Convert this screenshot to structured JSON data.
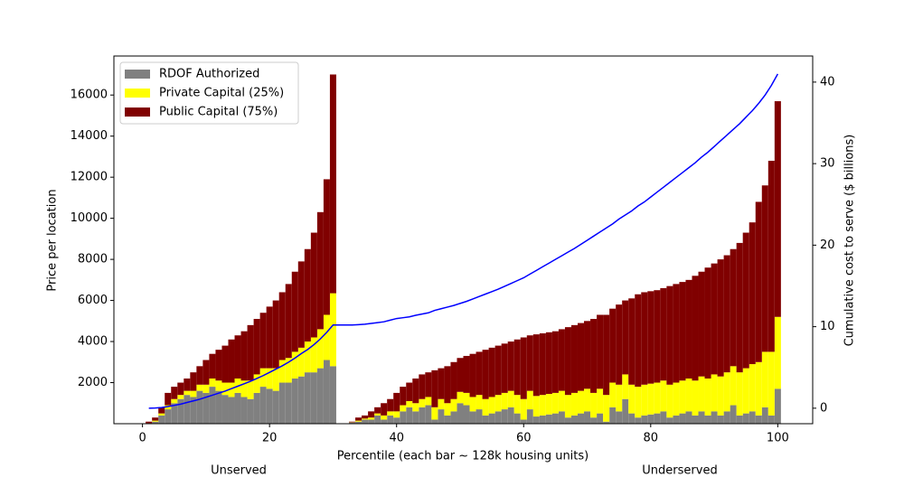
{
  "chart_data": {
    "type": "bar",
    "stacked": true,
    "xlabel": "Percentile (each bar ~ 128k housing units)",
    "ylabel": "Price per location",
    "y2label": "Cumulative cost to serve ($ billions)",
    "annotations": [
      "Unserved",
      "Underserved"
    ],
    "legend": "upper left",
    "xlim": [
      -4.5,
      105.5
    ],
    "xticks": [
      0,
      20,
      40,
      60,
      80,
      100
    ],
    "ylim": [
      0,
      17900
    ],
    "yticks": [
      2000,
      4000,
      6000,
      8000,
      10000,
      12000,
      14000,
      16000
    ],
    "y2lim": [
      -1.9,
      43.2
    ],
    "y2ticks": [
      0,
      10,
      20,
      30,
      40
    ],
    "x": [
      1,
      2,
      3,
      4,
      5,
      6,
      7,
      8,
      9,
      10,
      11,
      12,
      13,
      14,
      15,
      16,
      17,
      18,
      19,
      20,
      21,
      22,
      23,
      24,
      25,
      26,
      27,
      28,
      29,
      30,
      31,
      32,
      33,
      34,
      35,
      36,
      37,
      38,
      39,
      40,
      41,
      42,
      43,
      44,
      45,
      46,
      47,
      48,
      49,
      50,
      51,
      52,
      53,
      54,
      55,
      56,
      57,
      58,
      59,
      60,
      61,
      62,
      63,
      64,
      65,
      66,
      67,
      68,
      69,
      70,
      71,
      72,
      73,
      74,
      75,
      76,
      77,
      78,
      79,
      80,
      81,
      82,
      83,
      84,
      85,
      86,
      87,
      88,
      89,
      90,
      91,
      92,
      93,
      94,
      95,
      96,
      97,
      98,
      99,
      100
    ],
    "series": [
      {
        "name": "RDOF Authorized",
        "color": "#808080",
        "values": [
          0,
          100,
          400,
          700,
          1000,
          1200,
          1400,
          1300,
          1600,
          1500,
          1800,
          1600,
          1400,
          1300,
          1500,
          1300,
          1200,
          1500,
          1800,
          1700,
          1600,
          2000,
          2000,
          2200,
          2300,
          2500,
          2500,
          2700,
          3100,
          2800,
          0,
          0,
          60,
          100,
          200,
          200,
          400,
          200,
          400,
          300,
          600,
          800,
          600,
          800,
          900,
          200,
          700,
          400,
          600,
          1000,
          900,
          600,
          700,
          400,
          500,
          600,
          700,
          800,
          500,
          200,
          700,
          350,
          400,
          450,
          500,
          600,
          300,
          400,
          500,
          600,
          300,
          500,
          100,
          800,
          600,
          1200,
          500,
          300,
          400,
          450,
          500,
          600,
          300,
          400,
          500,
          600,
          400,
          600,
          400,
          600,
          400,
          600,
          900,
          400,
          500,
          600,
          400,
          800,
          400,
          1700
        ]
      },
      {
        "name": "Private Capital (25%)",
        "color": "#ffff00",
        "values": [
          25,
          50,
          100,
          200,
          200,
          200,
          200,
          300,
          300,
          400,
          400,
          500,
          600,
          700,
          700,
          800,
          900,
          900,
          900,
          1000,
          1100,
          1100,
          1200,
          1300,
          1400,
          1500,
          1700,
          1900,
          2200,
          3550,
          0,
          0,
          10,
          50,
          50,
          100,
          100,
          200,
          200,
          300,
          300,
          300,
          400,
          400,
          400,
          600,
          500,
          600,
          600,
          550,
          600,
          700,
          700,
          800,
          800,
          800,
          800,
          800,
          900,
          1000,
          900,
          1000,
          1000,
          1000,
          1000,
          1000,
          1100,
          1100,
          1100,
          1100,
          1200,
          1200,
          1300,
          1200,
          1300,
          1200,
          1400,
          1500,
          1500,
          1500,
          1500,
          1500,
          1600,
          1600,
          1600,
          1600,
          1700,
          1700,
          1800,
          1800,
          1900,
          1900,
          1900,
          2100,
          2200,
          2300,
          2600,
          2700,
          3100,
          3500
        ]
      },
      {
        "name": "Public Capital (75%)",
        "color": "#800000",
        "values": [
          75,
          150,
          300,
          600,
          600,
          600,
          600,
          900,
          900,
          1200,
          1200,
          1500,
          1800,
          2100,
          2100,
          2400,
          2700,
          2700,
          2700,
          3000,
          3300,
          3300,
          3600,
          3900,
          4200,
          4500,
          5100,
          5700,
          6600,
          10650,
          0,
          0,
          30,
          150,
          150,
          300,
          300,
          600,
          600,
          900,
          900,
          900,
          1200,
          1200,
          1200,
          1800,
          1500,
          1800,
          1800,
          1650,
          1800,
          2100,
          2100,
          2400,
          2400,
          2400,
          2400,
          2400,
          2700,
          3000,
          2700,
          3000,
          3000,
          3000,
          3000,
          3000,
          3300,
          3300,
          3300,
          3300,
          3600,
          3600,
          3900,
          3600,
          3900,
          3600,
          4200,
          4500,
          4500,
          4500,
          4500,
          4500,
          4800,
          4800,
          4800,
          4800,
          5100,
          5100,
          5400,
          5400,
          5700,
          5700,
          5700,
          6300,
          6600,
          6900,
          7800,
          8100,
          9300,
          10500
        ]
      }
    ],
    "lines": [
      {
        "type": "line",
        "axis": "y2",
        "color": "#0000ff",
        "values": [
          0,
          0.02,
          0.08,
          0.2,
          0.35,
          0.5,
          0.7,
          0.9,
          1.1,
          1.35,
          1.6,
          1.85,
          2.1,
          2.4,
          2.7,
          3.0,
          3.3,
          3.65,
          4.0,
          4.4,
          4.8,
          5.2,
          5.65,
          6.15,
          6.7,
          7.2,
          7.8,
          8.5,
          9.3,
          10.2,
          10.2,
          10.2,
          10.2,
          10.25,
          10.3,
          10.4,
          10.5,
          10.6,
          10.8,
          11.0,
          11.1,
          11.2,
          11.4,
          11.55,
          11.7,
          12.0,
          12.2,
          12.4,
          12.6,
          12.85,
          13.1,
          13.4,
          13.7,
          14.0,
          14.3,
          14.6,
          14.95,
          15.3,
          15.65,
          16.0,
          16.45,
          16.9,
          17.35,
          17.8,
          18.25,
          18.7,
          19.15,
          19.6,
          20.1,
          20.6,
          21.1,
          21.6,
          22.1,
          22.6,
          23.2,
          23.7,
          24.2,
          24.8,
          25.3,
          25.9,
          26.5,
          27.1,
          27.7,
          28.3,
          28.9,
          29.5,
          30.1,
          30.8,
          31.4,
          32.1,
          32.8,
          33.5,
          34.2,
          34.9,
          35.7,
          36.5,
          37.4,
          38.4,
          39.6,
          41.0
        ]
      }
    ]
  }
}
